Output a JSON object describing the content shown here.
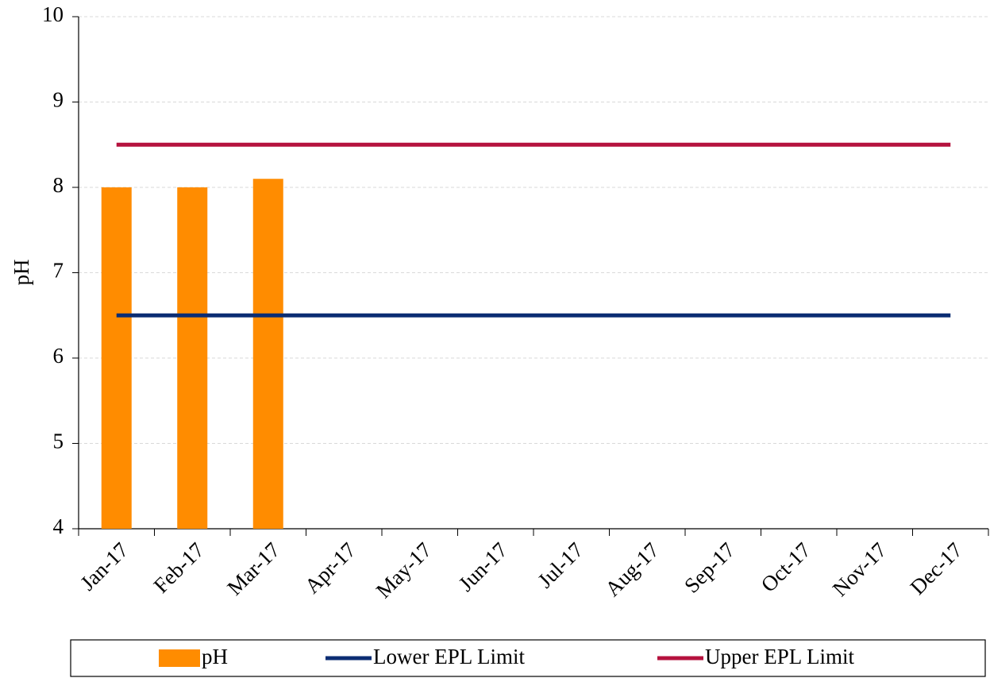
{
  "chart_data": {
    "type": "bar",
    "y_label": "pH",
    "categories": [
      "Jan-17",
      "Feb-17",
      "Mar-17",
      "Apr-17",
      "May-17",
      "Jun-17",
      "Jul-17",
      "Aug-17",
      "Sep-17",
      "Oct-17",
      "Nov-17",
      "Dec-17"
    ],
    "series": [
      {
        "name": "pH",
        "type": "bar",
        "color": "#ff8c00",
        "values": [
          8,
          8,
          8.1,
          null,
          null,
          null,
          null,
          null,
          null,
          null,
          null,
          null
        ]
      },
      {
        "name": "Lower EPL Limit",
        "type": "line",
        "color": "#0b2d73",
        "values": [
          6.5,
          6.5,
          6.5,
          6.5,
          6.5,
          6.5,
          6.5,
          6.5,
          6.5,
          6.5,
          6.5,
          6.5
        ]
      },
      {
        "name": "Upper EPL Limit",
        "type": "line",
        "color": "#b5123e",
        "values": [
          8.5,
          8.5,
          8.5,
          8.5,
          8.5,
          8.5,
          8.5,
          8.5,
          8.5,
          8.5,
          8.5,
          8.5
        ]
      }
    ],
    "ylim": [
      4,
      10
    ],
    "yticks": [
      4,
      5,
      6,
      7,
      8,
      9,
      10
    ],
    "grid": true,
    "legend": "bottom"
  }
}
